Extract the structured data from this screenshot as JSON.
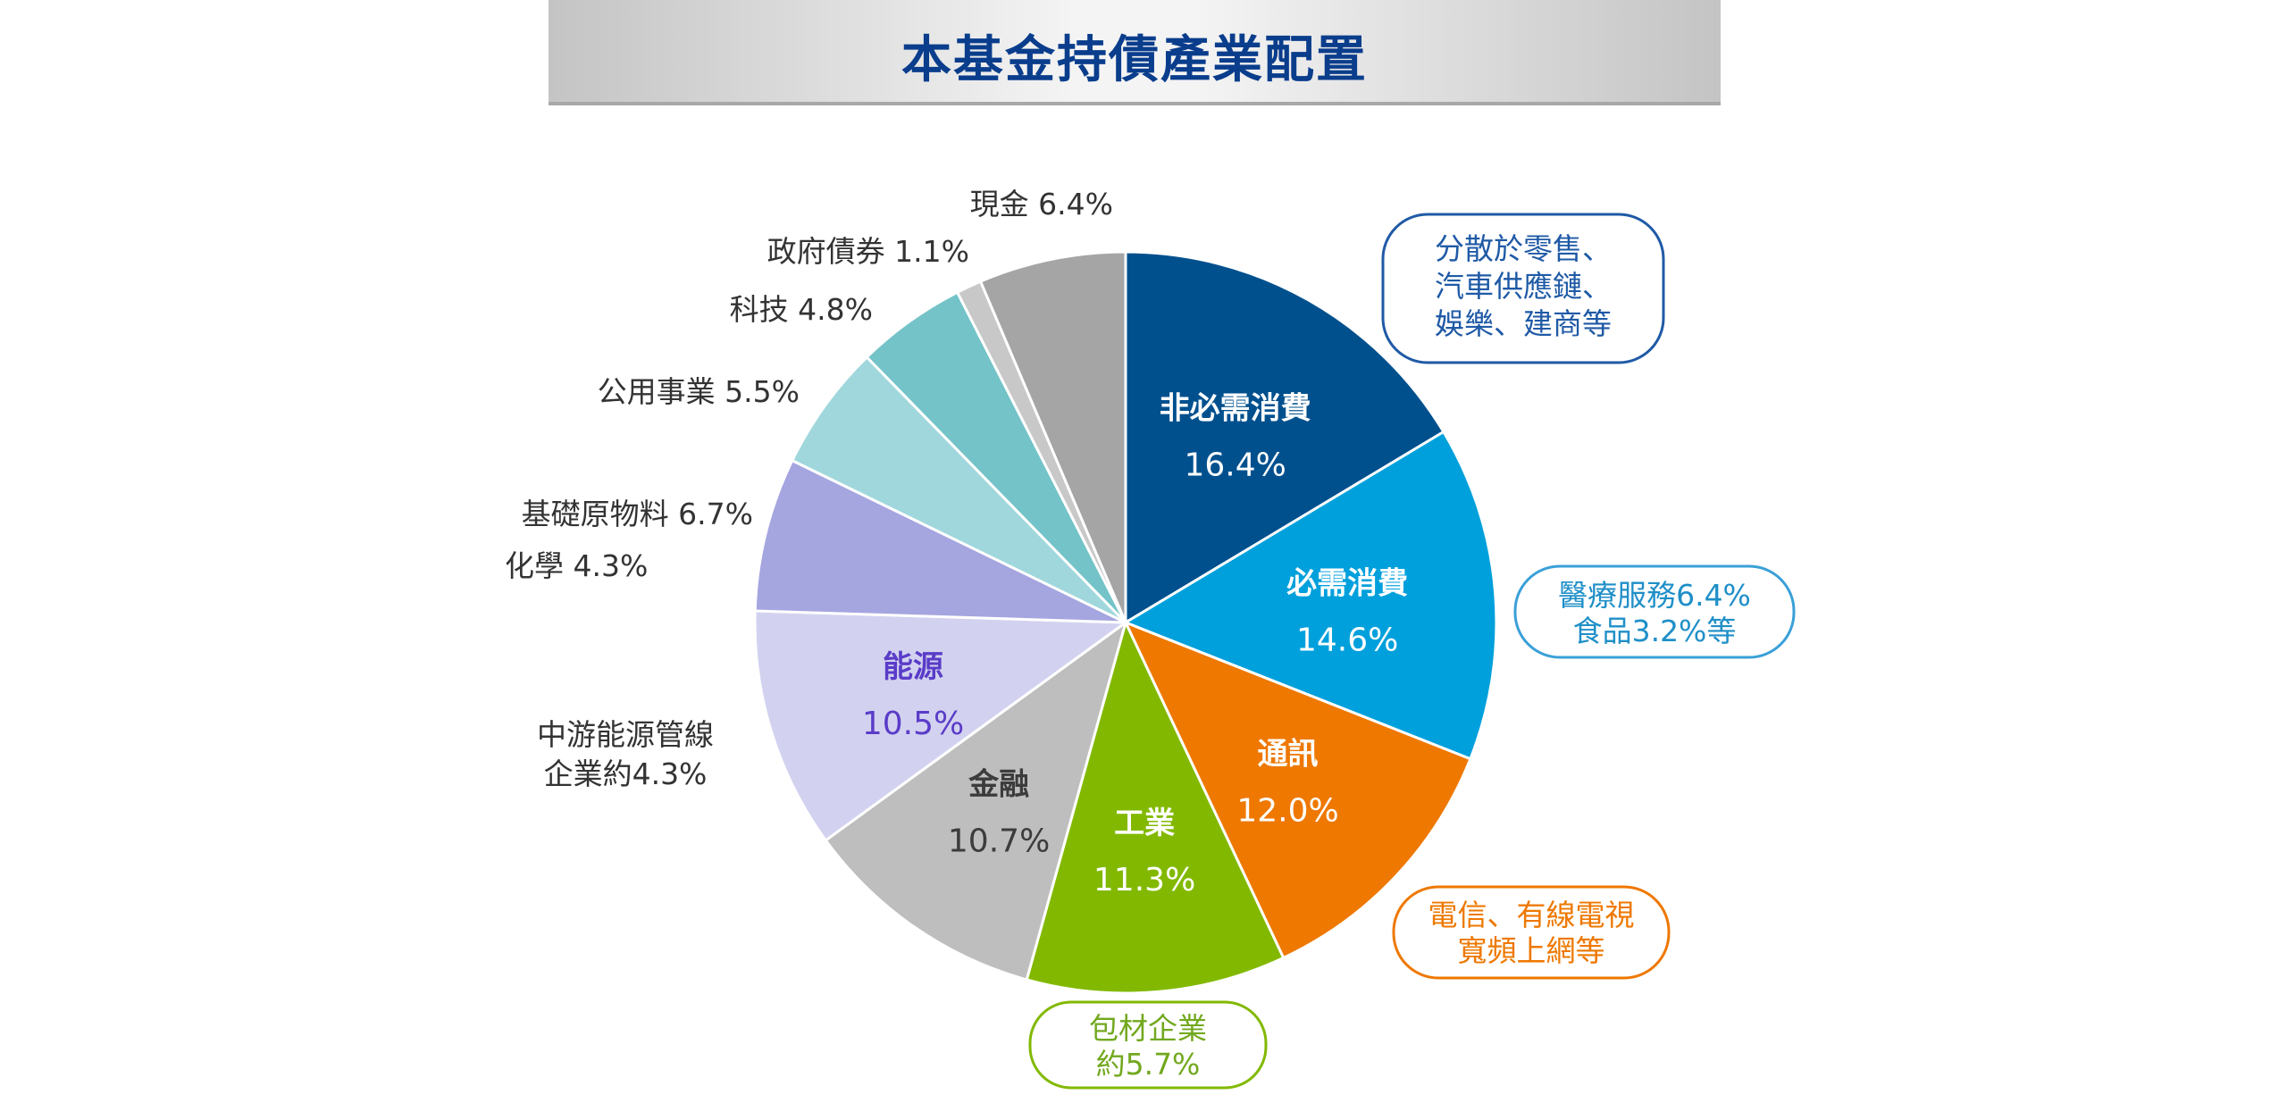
{
  "chart_data": {
    "type": "pie",
    "title": "本基金持債產業配置",
    "start_angle": 0,
    "direction": "clockwise",
    "slices": [
      {
        "name": "非必需消費",
        "value": 16.4,
        "display": "16.4%",
        "color": "#00508e",
        "label_color": "#ffffff",
        "label_position": "inside"
      },
      {
        "name": "必需消費",
        "value": 14.6,
        "display": "14.6%",
        "color": "#00a0dc",
        "label_color": "#ffffff",
        "label_position": "inside"
      },
      {
        "name": "通訊",
        "value": 12.0,
        "display": "12.0%",
        "color": "#ee7800",
        "label_color": "#ffffff",
        "label_position": "inside"
      },
      {
        "name": "工業",
        "value": 11.3,
        "display": "11.3%",
        "color": "#82b900",
        "label_color": "#ffffff",
        "label_position": "inside"
      },
      {
        "name": "金融",
        "value": 10.7,
        "display": "10.7%",
        "color": "#bebebe",
        "label_color": "#3c3c3c",
        "label_position": "inside"
      },
      {
        "name": "能源",
        "value": 10.5,
        "display": "10.5%",
        "color": "#d2d2f0",
        "label_color": "#5a3cc8",
        "label_position": "inside"
      },
      {
        "name": "基礎原物料",
        "value": 6.7,
        "display": "6.7%",
        "color": "#a5a5e0",
        "label_color": "#333333",
        "label_position": "outside"
      },
      {
        "name": "公用事業",
        "value": 5.5,
        "display": "5.5%",
        "color": "#a0d7dc",
        "label_color": "#333333",
        "label_position": "outside"
      },
      {
        "name": "科技",
        "value": 4.8,
        "display": "4.8%",
        "color": "#73c3c8",
        "label_color": "#333333",
        "label_position": "outside"
      },
      {
        "name": "政府債券",
        "value": 1.1,
        "display": "1.1%",
        "color": "#c8c8c8",
        "label_color": "#333333",
        "label_position": "outside"
      },
      {
        "name": "現金",
        "value": 6.4,
        "display": "6.4%",
        "color": "#a5a5a5",
        "label_color": "#333333",
        "label_position": "outside"
      }
    ],
    "extra_labels": [
      {
        "text": "化學 4.3%",
        "color": "#333333"
      },
      {
        "lines": [
          "中游能源管線",
          "企業約4.3%"
        ],
        "color": "#333333"
      }
    ],
    "annotations": [
      {
        "lines": [
          "分散於零售、",
          "汽車供應鏈、",
          "娛樂、建商等"
        ],
        "color": "#1f5aa6",
        "border": "#1f5aa6"
      },
      {
        "lines": [
          "醫療服務6.4%",
          "食品3.2%等"
        ],
        "color": "#1f8fc8",
        "border": "#3aa0d8"
      },
      {
        "lines": [
          "電信、有線電視",
          "寬頻上網等"
        ],
        "color": "#ee7800",
        "border": "#ee7800"
      },
      {
        "lines": [
          "包材企業",
          "約5.7%"
        ],
        "color": "#72a81e",
        "border": "#82b900"
      }
    ]
  }
}
